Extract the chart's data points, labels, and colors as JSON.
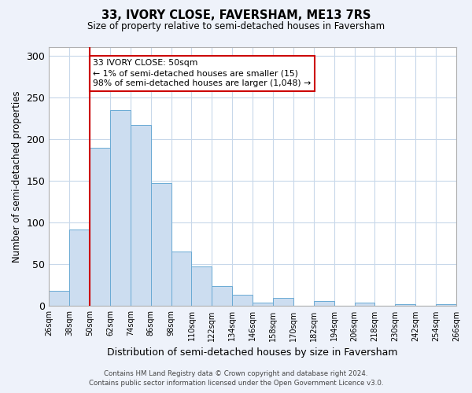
{
  "title": "33, IVORY CLOSE, FAVERSHAM, ME13 7RS",
  "subtitle": "Size of property relative to semi-detached houses in Faversham",
  "xlabel": "Distribution of semi-detached houses by size in Faversham",
  "ylabel": "Number of semi-detached properties",
  "bin_labels": [
    "26sqm",
    "38sqm",
    "50sqm",
    "62sqm",
    "74sqm",
    "86sqm",
    "98sqm",
    "110sqm",
    "122sqm",
    "134sqm",
    "146sqm",
    "158sqm",
    "170sqm",
    "182sqm",
    "194sqm",
    "206sqm",
    "218sqm",
    "230sqm",
    "242sqm",
    "254sqm",
    "266sqm"
  ],
  "bar_heights": [
    18,
    92,
    190,
    235,
    217,
    147,
    65,
    47,
    24,
    14,
    4,
    10,
    0,
    6,
    0,
    4,
    0,
    2,
    0,
    2
  ],
  "bar_color": "#ccddf0",
  "bar_edge_color": "#6aaad4",
  "ylim": [
    0,
    310
  ],
  "yticks": [
    0,
    50,
    100,
    150,
    200,
    250,
    300
  ],
  "property_value": 50,
  "property_label": "33 IVORY CLOSE: 50sqm",
  "annotation_line1": "← 1% of semi-detached houses are smaller (15)",
  "annotation_line2": "98% of semi-detached houses are larger (1,048) →",
  "vline_color": "#cc0000",
  "annotation_box_color": "#cc0000",
  "footer_line1": "Contains HM Land Registry data © Crown copyright and database right 2024.",
  "footer_line2": "Contains public sector information licensed under the Open Government Licence v3.0.",
  "background_color": "#eef2fa",
  "plot_background_color": "#ffffff",
  "grid_color": "#c8d8ea"
}
